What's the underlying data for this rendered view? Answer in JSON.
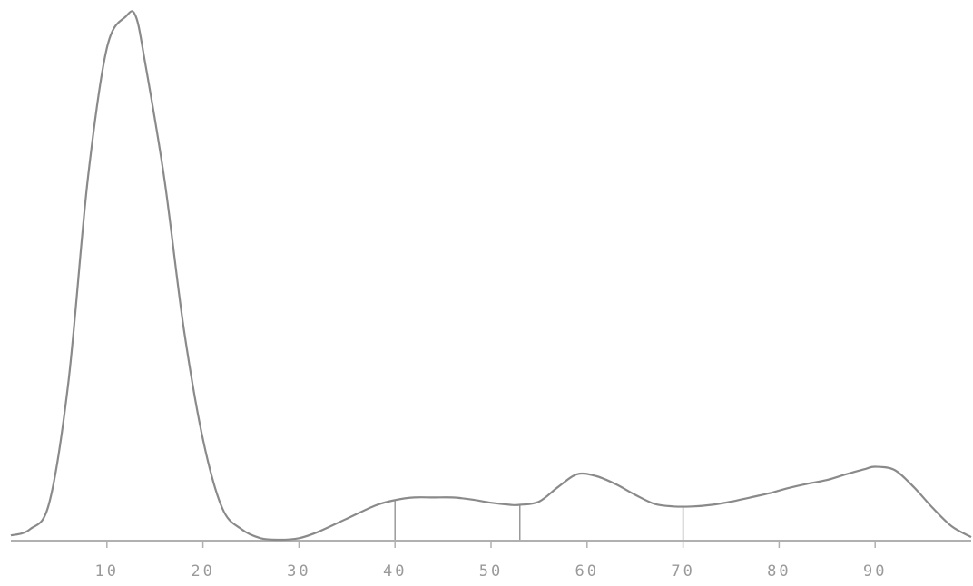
{
  "chart_data": {
    "type": "line",
    "title": "",
    "xlabel": "",
    "ylabel": "",
    "xlim": [
      0,
      100
    ],
    "ylim": [
      0,
      100
    ],
    "grid": false,
    "legend": "none",
    "colors": {
      "line": "#8a8a8a",
      "axis": "#b0b0b0",
      "marker": "#9a9a9a",
      "tick_label": "#9a9a9a"
    },
    "x_ticks": [
      10,
      20,
      30,
      40,
      50,
      60,
      70,
      80,
      90
    ],
    "x_tick_labels": [
      "10",
      "20",
      "30",
      "40",
      "50",
      "60",
      "70",
      "80",
      "90"
    ],
    "series": [
      {
        "x": [
          0,
          2,
          4,
          6,
          8,
          10,
          12,
          13,
          14,
          16,
          18,
          20,
          22,
          24,
          26,
          28,
          30,
          32,
          35,
          38,
          40,
          42,
          44,
          46,
          48,
          50,
          52,
          53,
          55,
          57,
          59,
          61,
          63,
          65,
          67,
          69,
          71,
          73,
          75,
          77,
          79,
          81,
          83,
          85,
          87,
          89,
          90,
          92,
          94,
          96,
          98,
          100
        ],
        "y": [
          0.8,
          2,
          7,
          30,
          68,
          93,
          99,
          99,
          90,
          68,
          40,
          19,
          6,
          2,
          0.3,
          0,
          0.3,
          1.5,
          4,
          6.5,
          7.5,
          8,
          8,
          8,
          7.6,
          7,
          6.6,
          6.6,
          7.2,
          10,
          12.4,
          12,
          10.5,
          8.5,
          6.8,
          6.3,
          6.3,
          6.6,
          7.2,
          8,
          8.8,
          9.8,
          10.6,
          11.3,
          12.4,
          13.4,
          13.8,
          13.2,
          10,
          6,
          2.5,
          0.5
        ]
      }
    ],
    "vertical_markers": [
      {
        "x": 40,
        "y": 7.5
      },
      {
        "x": 53,
        "y": 6.6
      },
      {
        "x": 70,
        "y": 6.3
      }
    ]
  }
}
